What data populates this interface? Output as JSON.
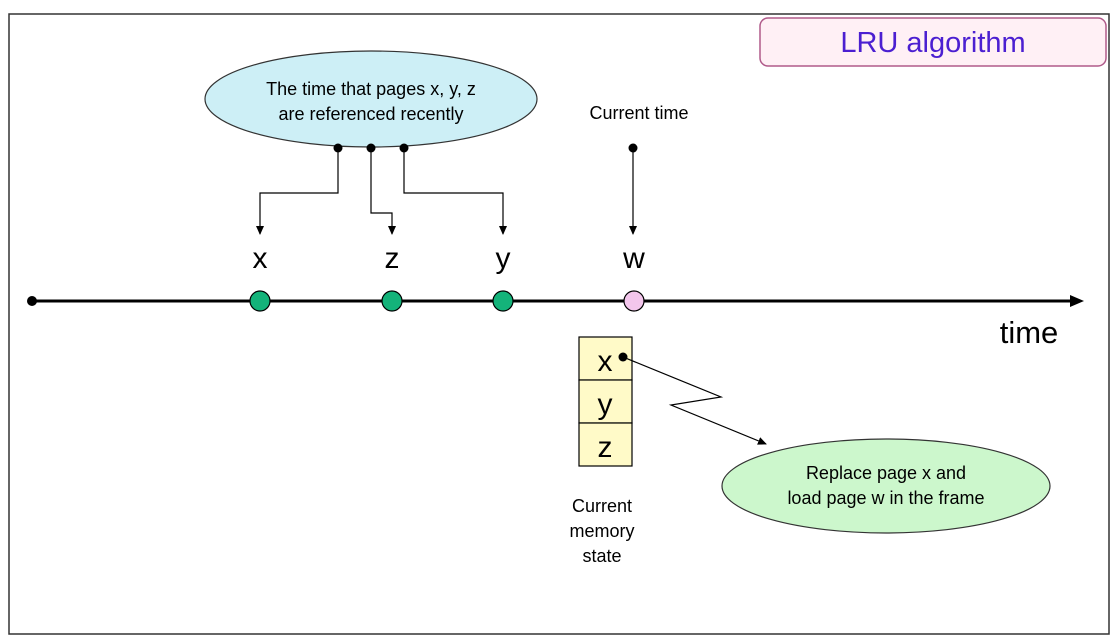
{
  "title": "LRU algorithm",
  "callout_recent": {
    "lines": [
      "The time that pages x, y, z",
      "are referenced recently"
    ]
  },
  "current_time_label": "Current time",
  "axis_label": "time",
  "timeline_pages": [
    {
      "label": "x"
    },
    {
      "label": "z"
    },
    {
      "label": "y"
    },
    {
      "label": "w"
    }
  ],
  "memory_state": {
    "cells": [
      "x",
      "y",
      "z"
    ],
    "caption_lines": [
      "Current",
      "memory",
      "state"
    ]
  },
  "callout_replace": {
    "lines": [
      "Replace page x and",
      "load page w in the frame"
    ]
  },
  "colors": {
    "title_text": "#4b1fd1",
    "title_border": "#b05a8a",
    "title_fill": "#fff0f5",
    "callout_recent_fill": "#cdeff6",
    "referenced_dot": "#14b37a",
    "current_dot": "#f3c6ec",
    "memory_cell": "#fffac8",
    "callout_replace_fill": "#ccf7cc"
  }
}
